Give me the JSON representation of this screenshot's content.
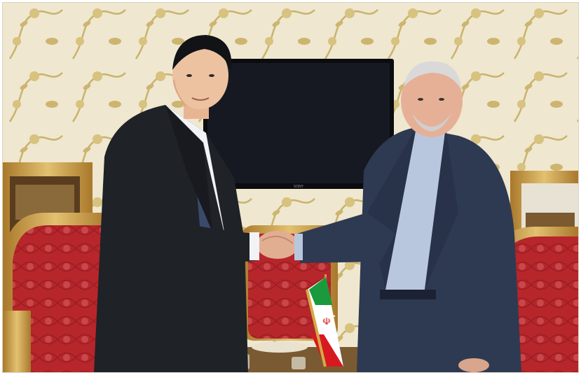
{
  "photo": {
    "tv_brand": "SONY",
    "flag_emblem": "☫"
  },
  "colors": {
    "wallpaper": "#efe7cf",
    "wallpaper_pattern": "#c9b36c",
    "tv": "#0b0c10",
    "left_suit": "#1f2227",
    "right_suit": "#2e3a52",
    "chair_fabric": "#b6262b",
    "gold": "#c79b3a",
    "iran_green": "#1a9a3c",
    "iran_red": "#d71920"
  }
}
